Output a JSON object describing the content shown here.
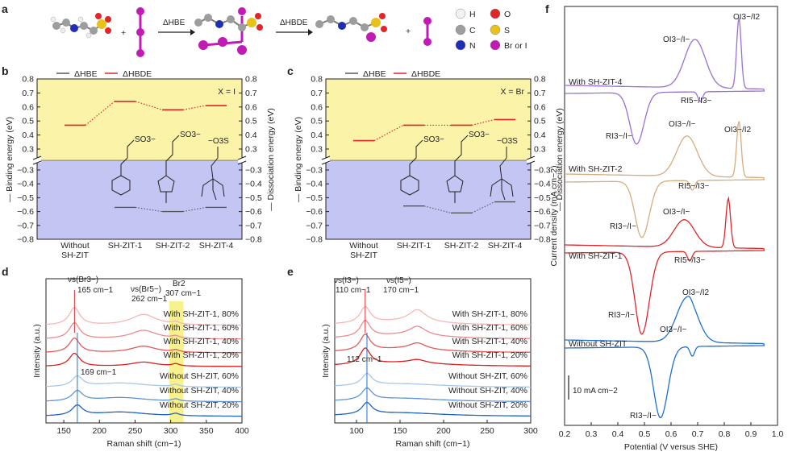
{
  "panel_labels": {
    "a": "a",
    "b": "b",
    "c": "c",
    "d": "d",
    "e": "e",
    "f": "f"
  },
  "panel_a": {
    "arrow1_label": "ΔHBE",
    "arrow2_label": "ΔHBDE",
    "plus": "+",
    "legend": [
      {
        "symbol": "H",
        "color": "#f2f2f2",
        "text": "H"
      },
      {
        "symbol": "C",
        "color": "#9d9d9d",
        "text": "C"
      },
      {
        "symbol": "N",
        "color": "#1f2fb5",
        "text": "N"
      },
      {
        "symbol": "O",
        "color": "#e0262b",
        "text": "O"
      },
      {
        "symbol": "S",
        "color": "#e8c21b",
        "text": "S"
      },
      {
        "symbol": "X",
        "color": "#c21bb5",
        "text": "Br or I"
      }
    ]
  },
  "chart_data": [
    {
      "panel": "b",
      "type": "line",
      "title": "X = I",
      "legend": [
        "ΔHBE",
        "ΔHBDE"
      ],
      "categories": [
        "Without\nSH-ZIT",
        "SH-ZIT-1",
        "SH-ZIT-2",
        "SH-ZIT-4"
      ],
      "ylabel_left": "Binding energy (eV)",
      "ylabel_right": "Dissociation energy (eV)",
      "upper_ticks": [
        0.3,
        0.4,
        0.5,
        0.6,
        0.7,
        0.8
      ],
      "lower_ticks": [
        -0.3,
        -0.4,
        -0.5,
        -0.6,
        -0.7,
        -0.8
      ],
      "series": [
        {
          "name": "ΔHBDE",
          "values": [
            0.47,
            0.64,
            0.58,
            0.61
          ],
          "color": "#e0262b"
        },
        {
          "name": "ΔHBE",
          "values": [
            null,
            -0.57,
            -0.6,
            -0.57
          ],
          "color": "#55565a"
        }
      ],
      "molecule_labels": [
        "SO3−",
        "SO3−",
        "−O3S"
      ]
    },
    {
      "panel": "c",
      "type": "line",
      "title": "X = Br",
      "legend": [
        "ΔHBE",
        "ΔHBDE"
      ],
      "categories": [
        "Without\nSH-ZIT",
        "SH-ZIT-1",
        "SH-ZIT-2",
        "SH-ZIT-4"
      ],
      "ylabel_left": "Binding energy (eV)",
      "ylabel_right": "Dissociation energy (eV)",
      "upper_ticks": [
        0.3,
        0.4,
        0.5,
        0.6,
        0.7,
        0.8
      ],
      "lower_ticks": [
        -0.3,
        -0.4,
        -0.5,
        -0.6,
        -0.7,
        -0.8
      ],
      "series": [
        {
          "name": "ΔHBDE",
          "values": [
            0.36,
            0.47,
            0.47,
            0.51
          ],
          "color": "#e0262b"
        },
        {
          "name": "ΔHBE",
          "values": [
            null,
            -0.56,
            -0.61,
            -0.53
          ],
          "color": "#55565a"
        }
      ],
      "molecule_labels": [
        "SO3−",
        "SO3−",
        "−O3S"
      ]
    },
    {
      "panel": "d",
      "type": "line",
      "xlabel": "Raman shift (cm−1)",
      "ylabel": "Intensity (a.u.)",
      "xlim": [
        125,
        400
      ],
      "xticks": [
        150,
        200,
        250,
        300,
        350,
        400
      ],
      "annotations": [
        {
          "text": "νs(Br3−)",
          "x": 163
        },
        {
          "text": "165 cm−1",
          "x": 165
        },
        {
          "text": "νs(Br5−)",
          "x": 262
        },
        {
          "text": "262 cm−1",
          "x": 262
        },
        {
          "text": "Br2",
          "x": 307
        },
        {
          "text": "307 cm−1",
          "x": 307
        },
        {
          "text": "169 cm−1",
          "x": 169
        }
      ],
      "vlines": [
        165,
        169
      ],
      "highlight_band": [
        298,
        318
      ],
      "series": [
        {
          "name": "With SH-ZIT-1, 80%",
          "color": "#f4b8b8"
        },
        {
          "name": "With SH-ZIT-1, 60%",
          "color": "#ed8c8c"
        },
        {
          "name": "With SH-ZIT-1, 40%",
          "color": "#e45a5a"
        },
        {
          "name": "With SH-ZIT-1, 20%",
          "color": "#d92121"
        },
        {
          "name": "Without SH-ZIT, 60%",
          "color": "#a8c7ec"
        },
        {
          "name": "Without SH-ZIT, 40%",
          "color": "#5f95d8"
        },
        {
          "name": "Without SH-ZIT, 20%",
          "color": "#1f63c6"
        }
      ]
    },
    {
      "panel": "e",
      "type": "line",
      "xlabel": "Raman shift (cm−1)",
      "ylabel": "Intensity (a.u.)",
      "xlim": [
        75,
        300
      ],
      "xticks": [
        100,
        150,
        200,
        250,
        300
      ],
      "annotations": [
        {
          "text": "νs(I3−)",
          "x": 110
        },
        {
          "text": "110 cm−1",
          "x": 110
        },
        {
          "text": "νs(I5−)",
          "x": 170
        },
        {
          "text": "170 cm−1",
          "x": 170
        },
        {
          "text": "112 cm−1",
          "x": 112
        }
      ],
      "vlines": [
        110,
        112
      ],
      "series": [
        {
          "name": "With SH-ZIT-1, 80%",
          "color": "#f4b8b8"
        },
        {
          "name": "With SH-ZIT-1, 60%",
          "color": "#ed8c8c"
        },
        {
          "name": "With SH-ZIT-1, 40%",
          "color": "#e45a5a"
        },
        {
          "name": "With SH-ZIT-1, 20%",
          "color": "#d92121"
        },
        {
          "name": "Without SH-ZIT, 60%",
          "color": "#a8c7ec"
        },
        {
          "name": "Without SH-ZIT, 40%",
          "color": "#5f95d8"
        },
        {
          "name": "Without SH-ZIT, 20%",
          "color": "#1f63c6"
        }
      ]
    },
    {
      "panel": "f",
      "type": "line",
      "xlabel": "Potential (V versus SHE)",
      "ylabel": "Current density (mA cm−2)",
      "xlim": [
        0.2,
        1.0
      ],
      "xticks": [
        0.2,
        0.3,
        0.4,
        0.5,
        0.6,
        0.7,
        0.8,
        0.9,
        1.0
      ],
      "scale_bar": "10 mA cm−2",
      "series": [
        {
          "name": "With SH-ZIT-4",
          "color": "#9a6fd6"
        },
        {
          "name": "With SH-ZIT-2",
          "color": "#d6ac7e"
        },
        {
          "name": "With SH-ZIT-1",
          "color": "#e0262b"
        },
        {
          "name": "Without SH-ZIT",
          "color": "#1f6fd0"
        }
      ],
      "annotations": [
        {
          "text": "OI3−/I2"
        },
        {
          "text": "OI3−/I−"
        },
        {
          "text": "RI5−/I3−"
        },
        {
          "text": "RI3−/I−"
        }
      ]
    }
  ],
  "colors": {
    "upper_bg": "#faf3a8",
    "lower_bg": "#c3c6f3",
    "band": "#f6f07a",
    "axis": "#231f20"
  }
}
